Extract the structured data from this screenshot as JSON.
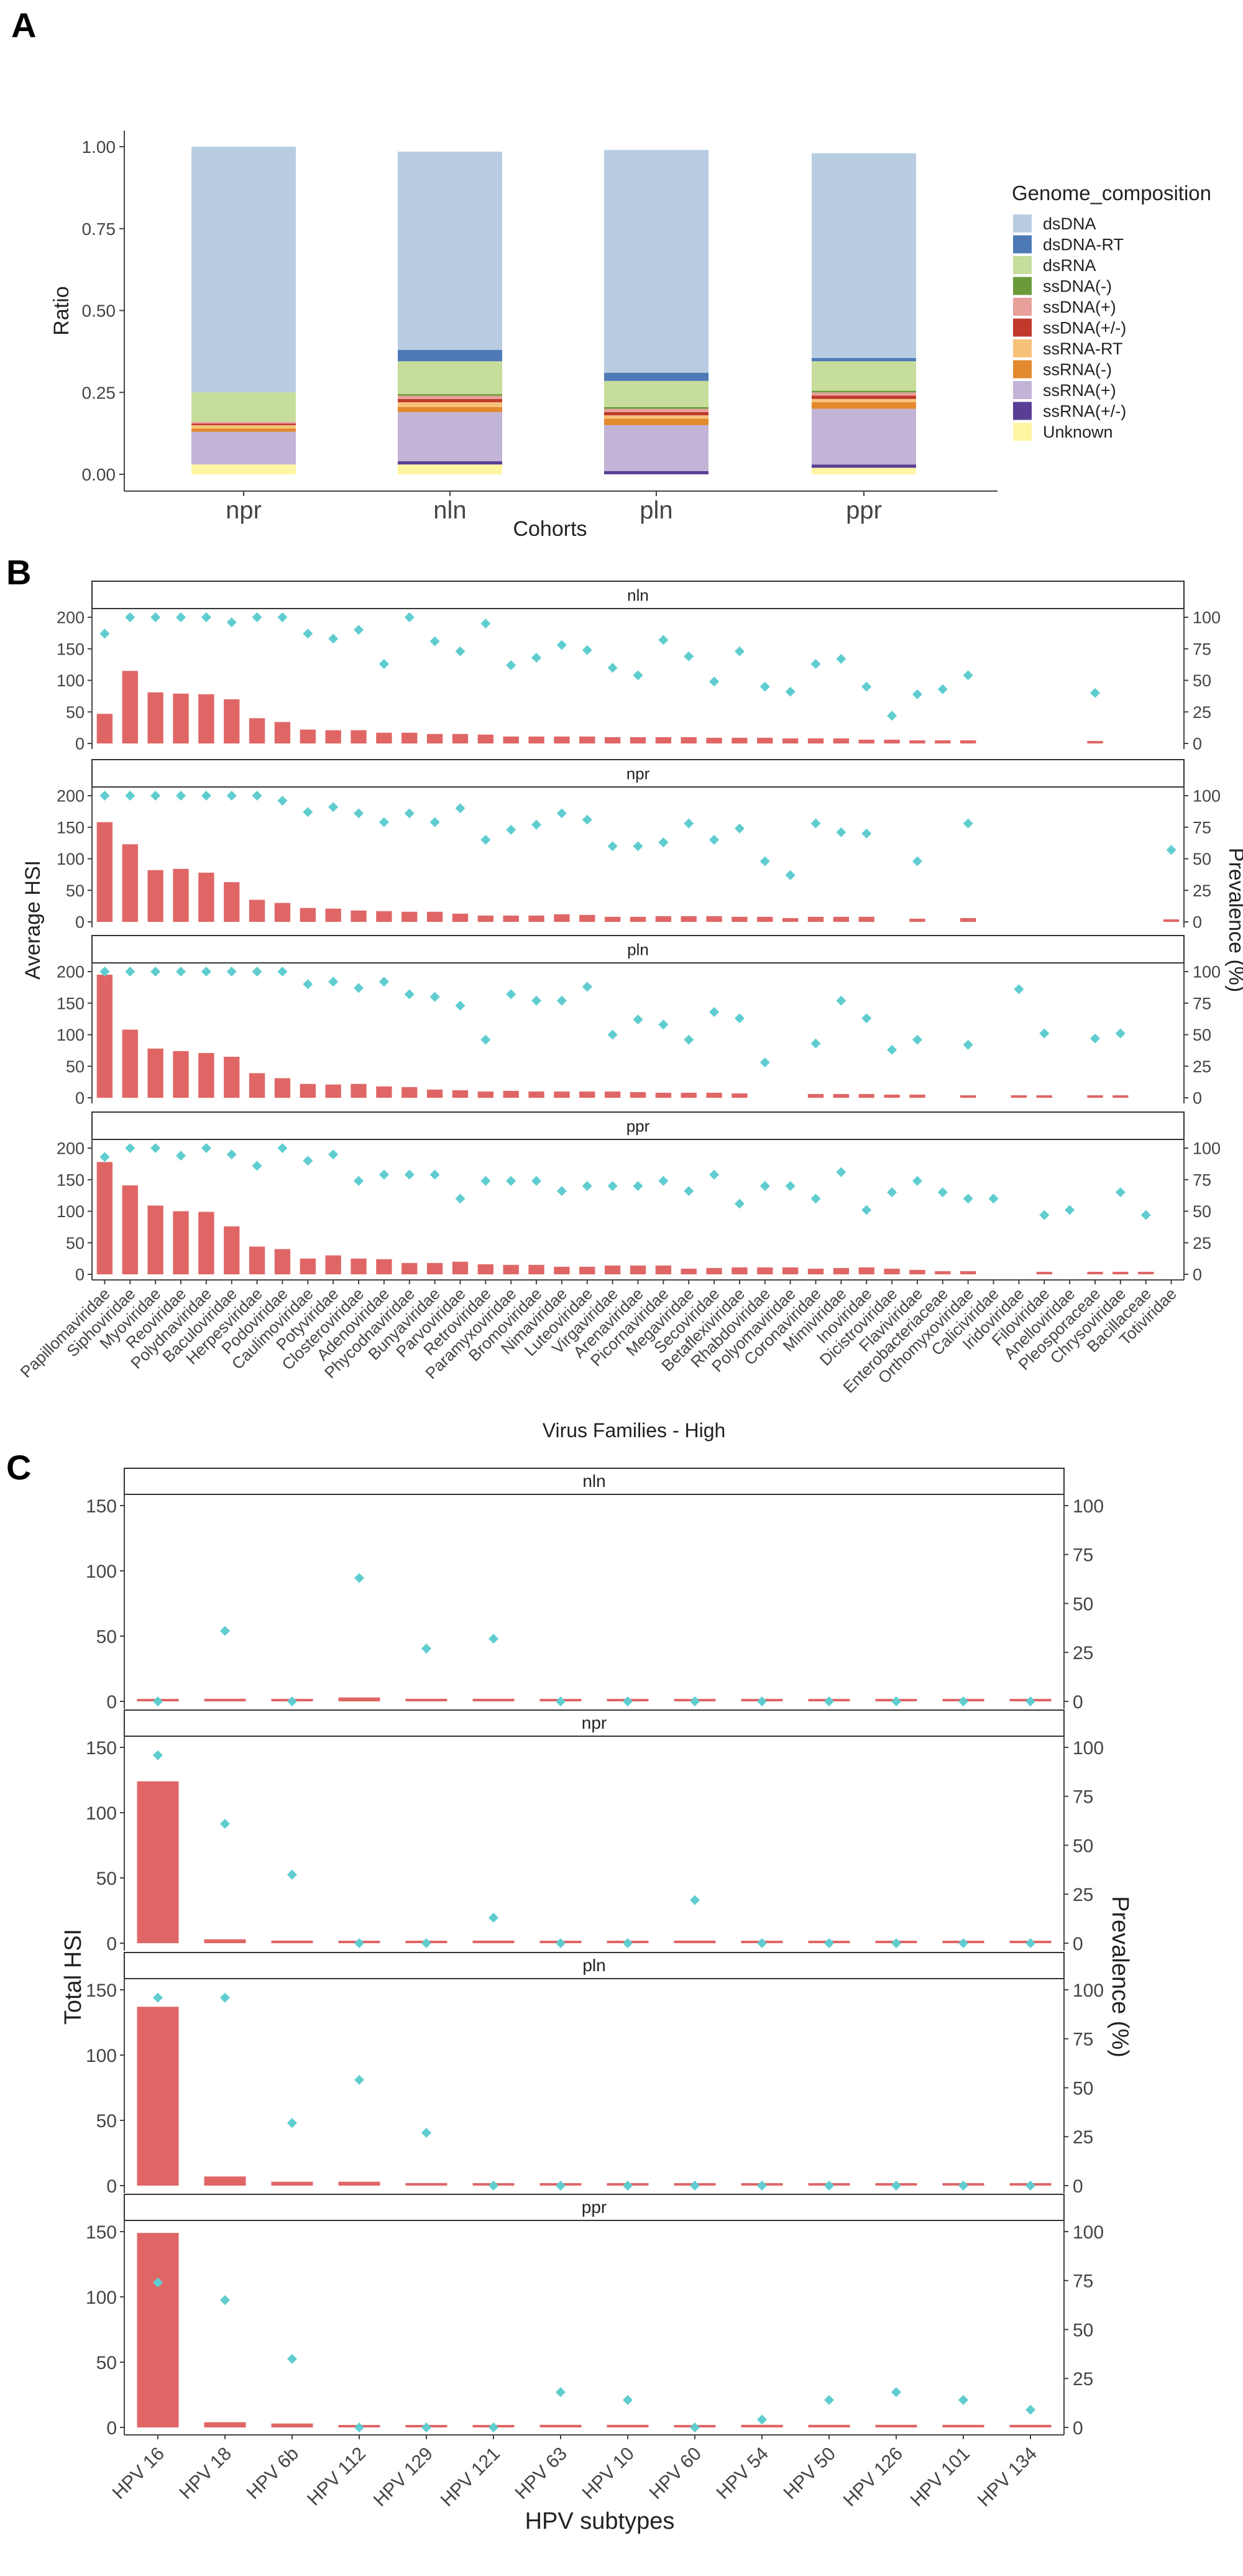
{
  "colors": {
    "bar": "#e06666",
    "prevalence": "#5fcdd0",
    "axis": "#444444",
    "strip_border": "#333333"
  },
  "chart_data": [
    {
      "panel": "A",
      "type": "bar",
      "stacked": true,
      "xlabel": "Cohorts",
      "ylabel": "Ratio",
      "ylim": [
        0,
        1
      ],
      "yticks": [
        "0.00",
        "0.25",
        "0.50",
        "0.75",
        "1.00"
      ],
      "legend_title": "Genome_composition",
      "legend_position": "right",
      "categories": [
        "npr",
        "nln",
        "pln",
        "ppr"
      ],
      "series": [
        {
          "name": "Unknown",
          "color": "#fff5a3",
          "values": [
            0.03,
            0.03,
            0.0,
            0.02
          ]
        },
        {
          "name": "ssRNA(+/-)",
          "color": "#5a3e96",
          "values": [
            0.0,
            0.01,
            0.01,
            0.01
          ]
        },
        {
          "name": "ssRNA(+)",
          "color": "#c2b4d6",
          "values": [
            0.1,
            0.15,
            0.14,
            0.17
          ]
        },
        {
          "name": "ssRNA(-)",
          "color": "#e38a2e",
          "values": [
            0.01,
            0.015,
            0.02,
            0.02
          ]
        },
        {
          "name": "ssRNA-RT",
          "color": "#f6c27a",
          "values": [
            0.01,
            0.015,
            0.01,
            0.01
          ]
        },
        {
          "name": "ssDNA(+/-)",
          "color": "#c0392b",
          "values": [
            0.005,
            0.01,
            0.01,
            0.01
          ]
        },
        {
          "name": "ssDNA(+)",
          "color": "#e8a09a",
          "values": [
            0.005,
            0.01,
            0.01,
            0.01
          ]
        },
        {
          "name": "ssDNA(-)",
          "color": "#6a9a3a",
          "values": [
            0.0,
            0.005,
            0.005,
            0.005
          ]
        },
        {
          "name": "dsRNA",
          "color": "#c6dd9b",
          "values": [
            0.09,
            0.1,
            0.08,
            0.09
          ]
        },
        {
          "name": "dsDNA-RT",
          "color": "#4e79b7",
          "values": [
            0.0,
            0.035,
            0.025,
            0.01
          ]
        },
        {
          "name": "dsDNA",
          "color": "#b8cde1",
          "values": [
            0.75,
            0.605,
            0.68,
            0.625
          ]
        }
      ],
      "legend_order": [
        "dsDNA",
        "dsDNA-RT",
        "dsRNA",
        "ssDNA(-)",
        "ssDNA(+)",
        "ssDNA(+/-)",
        "ssRNA-RT",
        "ssRNA(-)",
        "ssRNA(+)",
        "ssRNA(+/-)",
        "Unknown"
      ]
    },
    {
      "panel": "B",
      "type": "bar",
      "overlay": "scatter",
      "xlabel": "Virus Families - High",
      "ylabel": "Average HSI",
      "y2label": "Prevalence (%)",
      "ylim": [
        0,
        200
      ],
      "yticks": [
        "0",
        "50",
        "100",
        "150",
        "200"
      ],
      "y2lim": [
        0,
        100
      ],
      "y2ticks": [
        "0",
        "25",
        "50",
        "75",
        "100"
      ],
      "categories": [
        "Papillomaviridae",
        "Siphoviridae",
        "Myoviridae",
        "Reoviridae",
        "Polydnaviridae",
        "Baculoviridae",
        "Herpesviridae",
        "Podoviridae",
        "Caulimoviridae",
        "Potyviridae",
        "Closteroviridae",
        "Adenoviridae",
        "Phycodnaviridae",
        "Bunyaviridae",
        "Parvoviridae",
        "Retroviridae",
        "Paramyxoviridae",
        "Bromoviridae",
        "Nimaviridae",
        "Luteoviridae",
        "Virgaviridae",
        "Arenaviridae",
        "Picornaviridae",
        "Megaviridae",
        "Secoviridae",
        "Betaflexiviridae",
        "Rhabdoviridae",
        "Polyomaviridae",
        "Coronaviridae",
        "Mimiviridae",
        "Inoviridae",
        "Dicistroviridae",
        "Flaviviridae",
        "Enterobacteriaceae",
        "Orthomyxoviridae",
        "Caliciviridae",
        "Iridoviridae",
        "Filoviridae",
        "Anelloviridae",
        "Pleosporaceae",
        "Chrysoviridae",
        "Bacillaceae",
        "Totiviridae"
      ],
      "facets": [
        {
          "label": "nln",
          "hsi": [
            47,
            115,
            81,
            79,
            78,
            70,
            40,
            34,
            22,
            21,
            21,
            17,
            17,
            15,
            15,
            14,
            11,
            11,
            11,
            11,
            10,
            10,
            10,
            10,
            9,
            9,
            9,
            8,
            8,
            8,
            6,
            6,
            5,
            5,
            5,
            null,
            null,
            null,
            null,
            3,
            null,
            null,
            null
          ],
          "prevalence": [
            87,
            100,
            100,
            100,
            100,
            96,
            100,
            100,
            87,
            83,
            90,
            63,
            100,
            81,
            73,
            95,
            62,
            68,
            78,
            74,
            60,
            54,
            82,
            69,
            49,
            73,
            45,
            41,
            63,
            67,
            45,
            22,
            39,
            43,
            54,
            null,
            null,
            null,
            null,
            40,
            null,
            null,
            null
          ]
        },
        {
          "label": "npr",
          "hsi": [
            158,
            123,
            82,
            84,
            78,
            63,
            35,
            30,
            22,
            21,
            18,
            17,
            16,
            16,
            13,
            10,
            10,
            10,
            12,
            11,
            8,
            8,
            9,
            9,
            9,
            8,
            8,
            6,
            8,
            8,
            8,
            null,
            5,
            null,
            6,
            null,
            null,
            null,
            null,
            null,
            null,
            null,
            4
          ],
          "prevalence": [
            100,
            100,
            100,
            100,
            100,
            100,
            100,
            96,
            87,
            91,
            86,
            79,
            86,
            79,
            90,
            65,
            73,
            77,
            86,
            81,
            60,
            60,
            63,
            78,
            65,
            74,
            48,
            37,
            78,
            71,
            70,
            null,
            48,
            null,
            78,
            null,
            null,
            null,
            null,
            null,
            null,
            null,
            57
          ]
        },
        {
          "label": "pln",
          "hsi": [
            195,
            108,
            78,
            74,
            71,
            65,
            39,
            31,
            22,
            21,
            22,
            18,
            17,
            13,
            12,
            10,
            11,
            10,
            10,
            10,
            10,
            9,
            8,
            8,
            8,
            7,
            null,
            null,
            6,
            6,
            6,
            5,
            5,
            null,
            4,
            null,
            4,
            4,
            null,
            4,
            4,
            null,
            null
          ],
          "prevalence": [
            100,
            100,
            100,
            100,
            100,
            100,
            100,
            100,
            90,
            92,
            87,
            92,
            82,
            80,
            73,
            46,
            82,
            77,
            77,
            88,
            50,
            62,
            58,
            46,
            68,
            63,
            28,
            null,
            43,
            77,
            63,
            38,
            46,
            null,
            42,
            null,
            86,
            51,
            null,
            47,
            51,
            null,
            null
          ]
        },
        {
          "label": "ppr",
          "hsi": [
            178,
            141,
            109,
            100,
            99,
            76,
            44,
            40,
            25,
            30,
            25,
            24,
            18,
            18,
            20,
            16,
            15,
            15,
            12,
            12,
            14,
            14,
            14,
            9,
            10,
            11,
            11,
            11,
            9,
            10,
            11,
            9,
            7,
            5,
            5,
            null,
            null,
            4,
            null,
            4,
            4,
            4,
            null
          ],
          "prevalence": [
            93,
            100,
            100,
            94,
            100,
            95,
            86,
            100,
            90,
            95,
            74,
            79,
            79,
            79,
            60,
            74,
            74,
            74,
            66,
            70,
            70,
            70,
            74,
            66,
            79,
            56,
            70,
            70,
            60,
            81,
            51,
            65,
            74,
            65,
            60,
            60,
            null,
            47,
            51,
            null,
            65,
            47,
            null
          ]
        }
      ]
    },
    {
      "panel": "C",
      "type": "bar",
      "overlay": "scatter",
      "xlabel": "HPV subtypes",
      "ylabel": "Total HSI",
      "y2label": "Prevalence (%)",
      "ylim": [
        0,
        150
      ],
      "yticks": [
        "0",
        "50",
        "100",
        "150"
      ],
      "y2lim": [
        0,
        100
      ],
      "y2ticks": [
        "0",
        "25",
        "50",
        "75",
        "100"
      ],
      "categories": [
        "HPV 16",
        "HPV 18",
        "HPV 6b",
        "HPV 112",
        "HPV 129",
        "HPV 121",
        "HPV 63",
        "HPV 10",
        "HPV 60",
        "HPV 54",
        "HPV 50",
        "HPV 126",
        "HPV 101",
        "HPV 134"
      ],
      "facets": [
        {
          "label": "nln",
          "hsi": [
            0,
            2,
            0,
            3,
            2,
            2,
            0,
            0,
            0,
            0,
            0,
            0,
            0,
            0
          ],
          "prevalence": [
            0,
            36,
            0,
            63,
            27,
            32,
            0,
            0,
            0,
            0,
            0,
            0,
            0,
            0
          ]
        },
        {
          "label": "npr",
          "hsi": [
            124,
            3,
            2,
            0,
            0,
            2,
            0,
            0,
            2,
            0,
            0,
            0,
            0,
            0
          ],
          "prevalence": [
            96,
            61,
            35,
            0,
            0,
            13,
            0,
            0,
            22,
            0,
            0,
            0,
            0,
            0
          ]
        },
        {
          "label": "pln",
          "hsi": [
            137,
            7,
            3,
            3,
            2,
            0,
            0,
            0,
            0,
            0,
            0,
            0,
            0,
            0
          ],
          "prevalence": [
            96,
            96,
            32,
            54,
            27,
            0,
            0,
            0,
            0,
            0,
            0,
            0,
            0,
            0
          ]
        },
        {
          "label": "ppr",
          "hsi": [
            149,
            4,
            3,
            0,
            0,
            0,
            2,
            2,
            0,
            2,
            2,
            2,
            2,
            2
          ],
          "prevalence": [
            74,
            65,
            35,
            0,
            0,
            0,
            18,
            14,
            0,
            4,
            14,
            18,
            14,
            9
          ]
        }
      ]
    }
  ]
}
